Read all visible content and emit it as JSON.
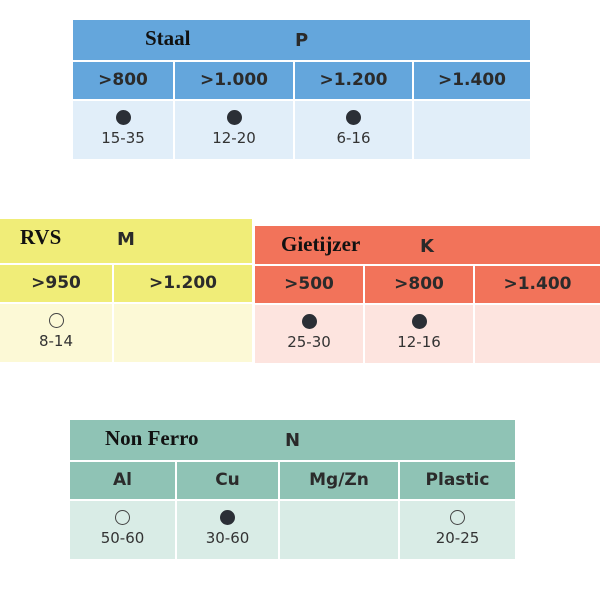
{
  "tables": [
    {
      "id": "staal",
      "name": "Staal",
      "code": "P",
      "header_color": "#64a6dc",
      "body_color": "#e1eef9",
      "columns": [
        {
          "label": ">800",
          "dot": "filled",
          "value": "15-35"
        },
        {
          "label": ">1.000",
          "dot": "filled",
          "value": "12-20"
        },
        {
          "label": ">1.200",
          "dot": "filled",
          "value": "6-16"
        },
        {
          "label": ">1.400",
          "dot": "none",
          "value": ""
        }
      ]
    },
    {
      "id": "rvs",
      "name": "RVS",
      "code": "M",
      "header_color": "#f0ed78",
      "body_color": "#fcf9d6",
      "columns": [
        {
          "label": ">950",
          "dot": "open",
          "value": "8-14"
        },
        {
          "label": ">1.200",
          "dot": "none",
          "value": ""
        }
      ]
    },
    {
      "id": "gietijzer",
      "name": "Gietijzer",
      "code": "K",
      "header_color": "#f2735a",
      "body_color": "#fde4df",
      "columns": [
        {
          "label": ">500",
          "dot": "filled",
          "value": "25-30"
        },
        {
          "label": ">800",
          "dot": "filled",
          "value": "12-16"
        },
        {
          "label": ">1.400",
          "dot": "none",
          "value": ""
        }
      ]
    },
    {
      "id": "non-ferro",
      "name": "Non Ferro",
      "code": "N",
      "header_color": "#8fc3b5",
      "body_color": "#d9ece6",
      "columns": [
        {
          "label": "Al",
          "dot": "open",
          "value": "50-60"
        },
        {
          "label": "Cu",
          "dot": "filled",
          "value": "30-60"
        },
        {
          "label": "Mg/Zn",
          "dot": "none",
          "value": ""
        },
        {
          "label": "Plastic",
          "dot": "open",
          "value": "20-25"
        }
      ]
    }
  ]
}
